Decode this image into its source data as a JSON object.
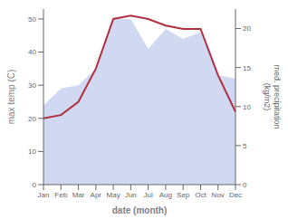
{
  "chart_data": {
    "type": "line",
    "xlabel": "date (month)",
    "ylabel": "max temp (C)",
    "y2label": "med. precipitation\n(kg/m2)",
    "categories": [
      "Jan",
      "Feb",
      "Mar",
      "Apr",
      "May",
      "Jun",
      "Jul",
      "Aug",
      "Sep",
      "Oct",
      "Nov",
      "Dec"
    ],
    "series": [
      {
        "type": "area",
        "color": "#aab8e8",
        "values": [
          24,
          29,
          30,
          35,
          50,
          50,
          41,
          47,
          44,
          46,
          33,
          32
        ]
      },
      {
        "type": "line",
        "color": "#b03040",
        "values": [
          20,
          21,
          25,
          35,
          50,
          51,
          50,
          48,
          47,
          47,
          33,
          22
        ]
      }
    ],
    "ylim": [
      0,
      53
    ],
    "yticks": [
      0,
      10,
      20,
      30,
      40,
      50
    ],
    "y2lim": [
      0,
      22.5
    ],
    "y2ticks": [
      0,
      5,
      10,
      15,
      20
    ],
    "grid": false
  }
}
